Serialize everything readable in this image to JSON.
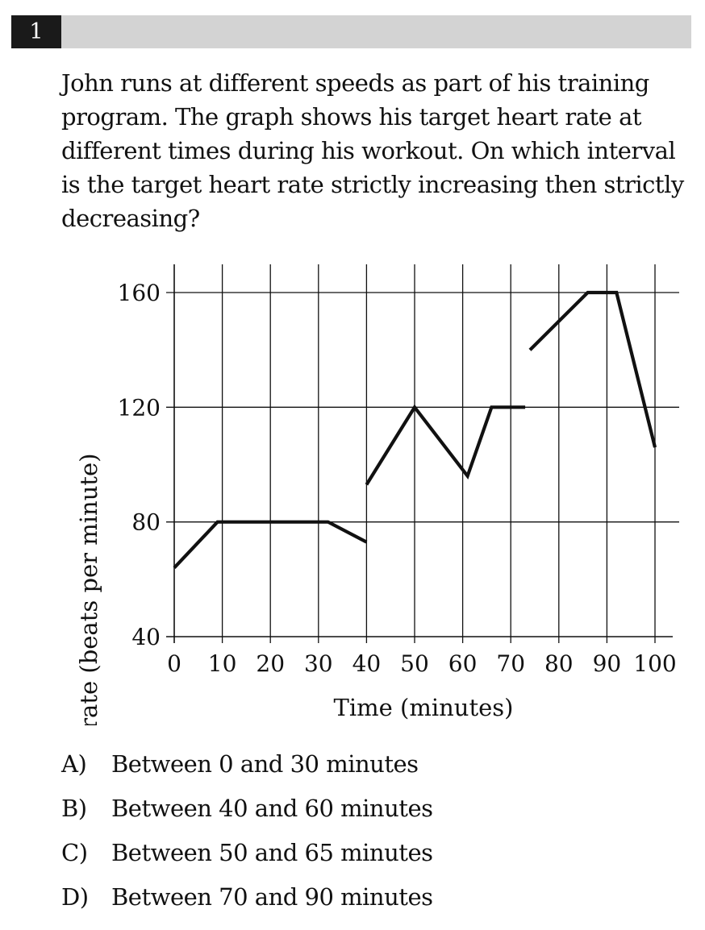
{
  "question": {
    "number": "1",
    "text": "John runs at different speeds as part of his training program.  The graph shows his target heart rate at different times during his workout.  On which interval is the target heart rate strictly increasing then strictly decreasing?"
  },
  "choices": [
    {
      "letter": "A)",
      "text": "Between 0 and 30 minutes"
    },
    {
      "letter": "B)",
      "text": "Between 40 and 60 minutes"
    },
    {
      "letter": "C)",
      "text": "Between 50 and 65 minutes"
    },
    {
      "letter": "D)",
      "text": "Between 70 and 90 minutes"
    }
  ],
  "chart_data": {
    "type": "line",
    "title": "",
    "xlabel": "Time (minutes)",
    "ylabel": "Target heart rate (beats per minute)",
    "xlim": [
      0,
      100
    ],
    "ylim": [
      40,
      160
    ],
    "x_ticks": [
      0,
      10,
      20,
      30,
      40,
      50,
      60,
      70,
      80,
      90,
      100
    ],
    "y_ticks": [
      40,
      80,
      120,
      160
    ],
    "grid": true,
    "segments": [
      {
        "points": [
          [
            0,
            64
          ],
          [
            9,
            80
          ],
          [
            32,
            80
          ],
          [
            40,
            73
          ]
        ]
      },
      {
        "points": [
          [
            40,
            93
          ],
          [
            50,
            120
          ],
          [
            61,
            96
          ],
          [
            66,
            120
          ],
          [
            73,
            120
          ]
        ]
      },
      {
        "points": [
          [
            74,
            140
          ],
          [
            86,
            160
          ],
          [
            92,
            160
          ],
          [
            100,
            106
          ]
        ]
      }
    ]
  }
}
